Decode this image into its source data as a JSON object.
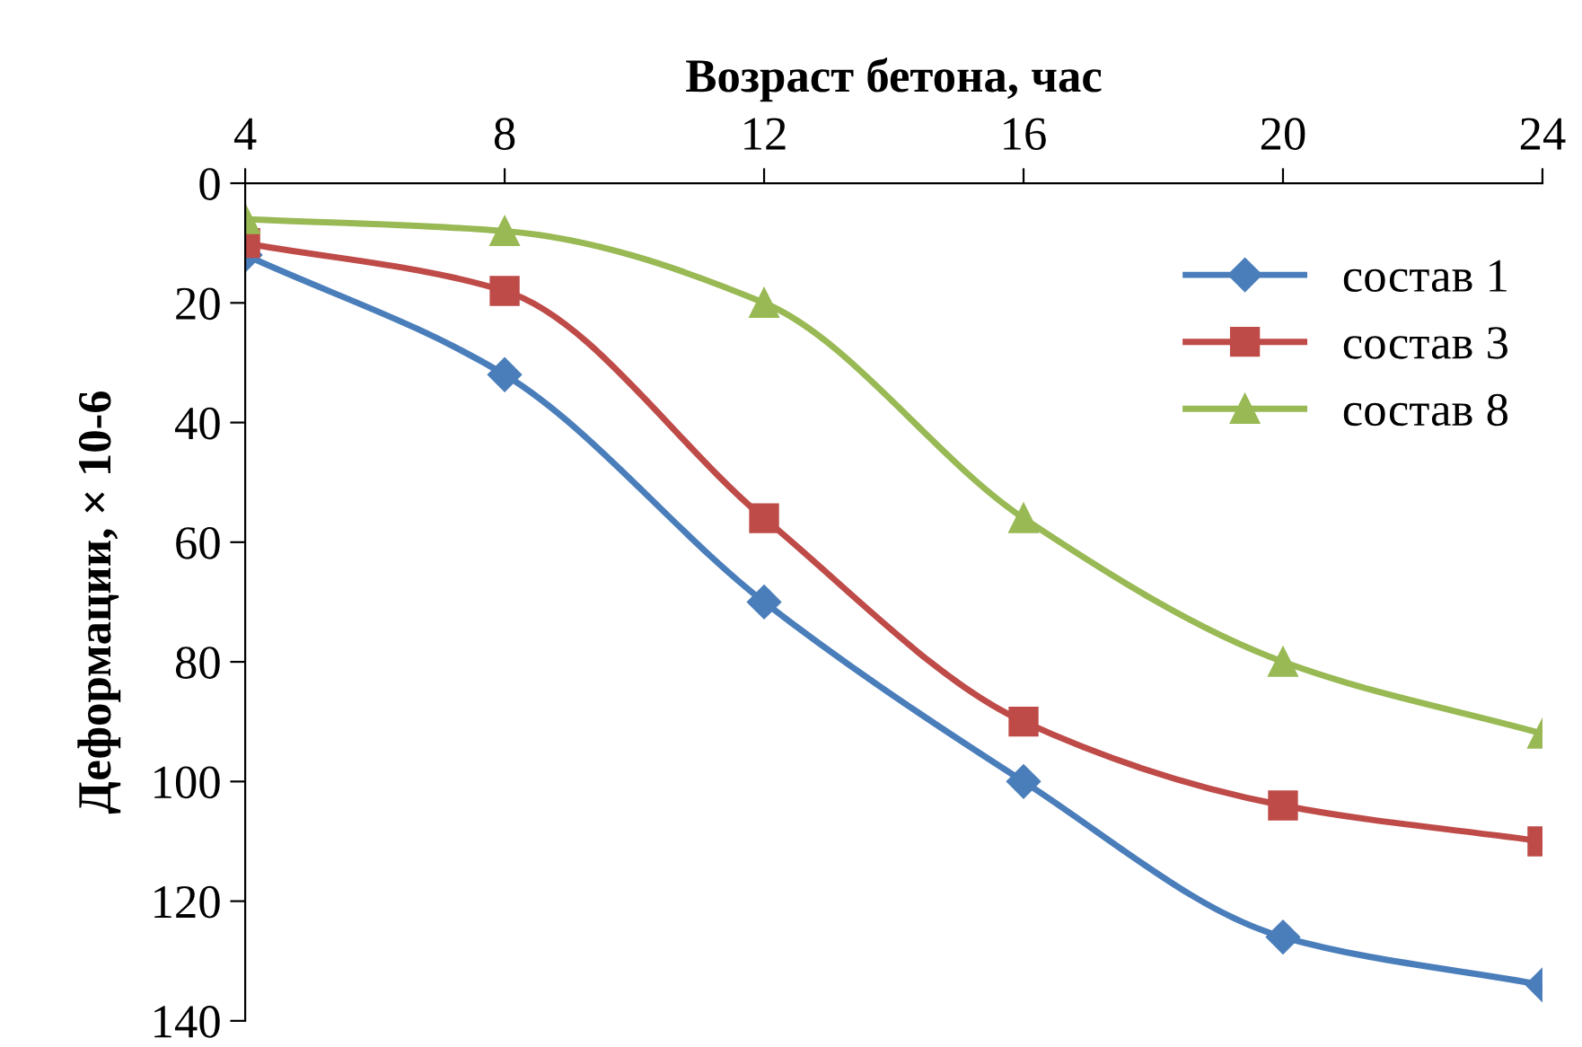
{
  "chart_data": {
    "type": "line",
    "xlabel": "Возраст бетона, час",
    "ylabel": "Деформации, × 10-6",
    "x": [
      4,
      8,
      12,
      16,
      20,
      24
    ],
    "series": [
      {
        "name": "состав 1",
        "color": "#4a7ebb",
        "marker": "diamond",
        "values": [
          12,
          32,
          70,
          100,
          126,
          134
        ]
      },
      {
        "name": "состав 3",
        "color": "#be4b48",
        "marker": "square",
        "values": [
          10,
          18,
          56,
          90,
          104,
          110
        ]
      },
      {
        "name": "состав 8",
        "color": "#98b954",
        "marker": "triangle",
        "values": [
          6,
          8,
          20,
          56,
          80,
          92
        ]
      }
    ],
    "xlim": [
      4,
      24
    ],
    "xticks": [
      4,
      8,
      12,
      16,
      20,
      24
    ],
    "ylim": [
      140,
      0
    ],
    "yticks": [
      0,
      20,
      40,
      60,
      80,
      100,
      120,
      140
    ],
    "grid": false,
    "legend": "top right",
    "line_style": "solid"
  }
}
